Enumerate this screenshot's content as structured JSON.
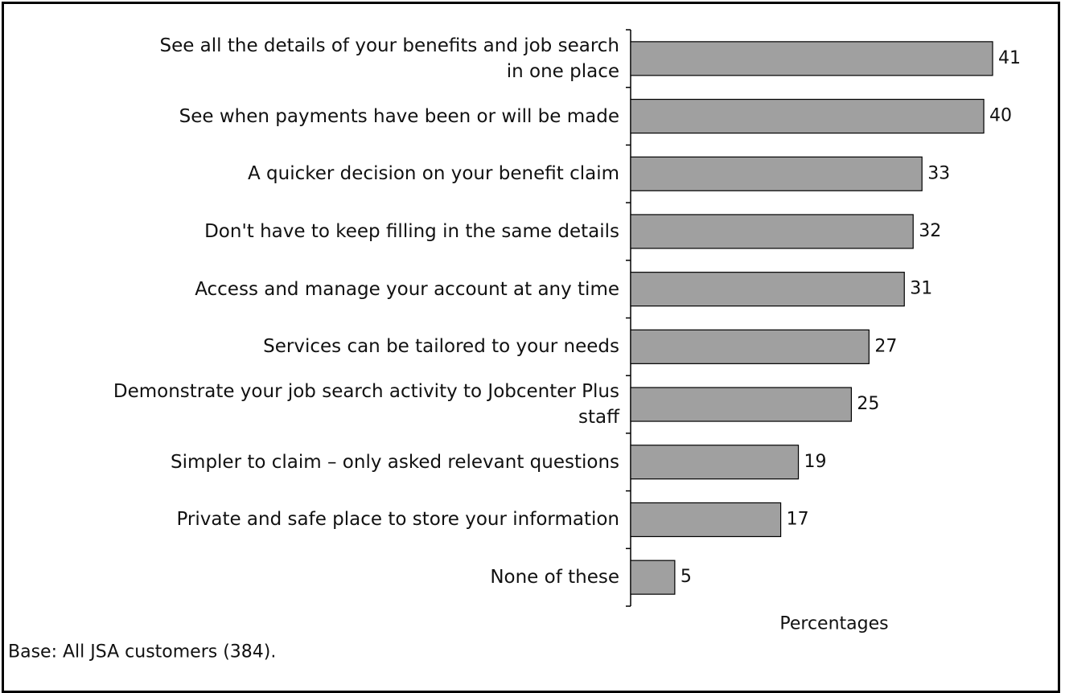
{
  "chart_data": {
    "type": "bar",
    "orientation": "horizontal",
    "categories": [
      "See all the details of your benefits and job search\nin one place",
      "See when payments have been or will be made",
      "A quicker decision on your benefit claim",
      "Don't have to keep filling in the same details",
      "Access and manage your account at any time",
      "Services can be tailored to your needs",
      "Demonstrate your job search activity to Jobcenter Plus\nstaff",
      "Simpler to claim – only asked relevant questions",
      "Private and safe place to store your information",
      "None of these"
    ],
    "values": [
      41,
      40,
      33,
      32,
      31,
      27,
      25,
      19,
      17,
      5
    ],
    "color": "#a0a0a0",
    "x_label": "Percentages",
    "footnote": "Base: All JSA customers (384)."
  }
}
